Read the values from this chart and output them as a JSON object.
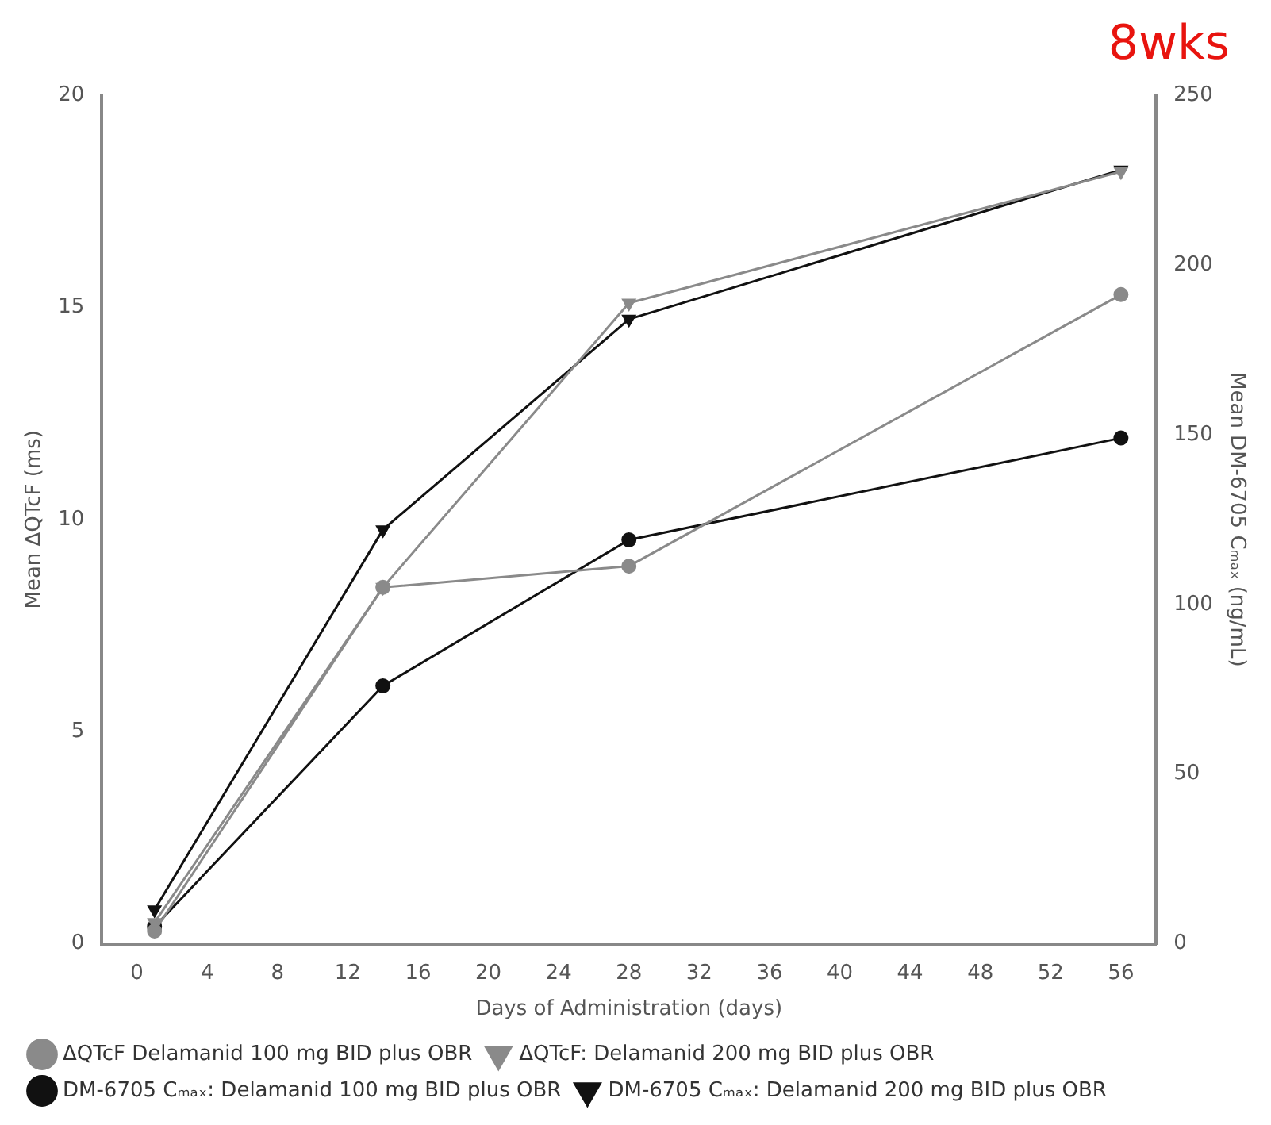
{
  "chart_data": {
    "type": "line",
    "xlabel": "Days of Administration (days)",
    "ylabel": "Mean ΔQTcF (ms)",
    "y2label": "Mean DM-6705 Cₘₐₓ (ng/mL)",
    "annotations": [
      "8wks"
    ],
    "x": [
      1,
      14,
      28,
      56
    ],
    "xlim": [
      -2,
      58
    ],
    "xticks": [
      0,
      4,
      8,
      12,
      16,
      20,
      24,
      28,
      32,
      36,
      40,
      44,
      48,
      52,
      56
    ],
    "ylim": [
      0,
      20
    ],
    "yticks": [
      0,
      5,
      10,
      15,
      20
    ],
    "y2lim": [
      0,
      250
    ],
    "y2ticks": [
      0,
      50,
      100,
      150,
      200,
      250
    ],
    "legend": "bottom",
    "grid": false,
    "line_style": "solid",
    "series": [
      {
        "name": "ΔQTcF Delamanid 100 mg BID plus OBR",
        "color": "#8a8a8a",
        "marker": "circle",
        "values": [
          0.3,
          8.4,
          8.9,
          15.3
        ]
      },
      {
        "name": "ΔQTcF: Delamanid 200 mg BID plus OBR",
        "color": "#8a8a8a",
        "marker": "triangle",
        "values": [
          0.5,
          8.4,
          15.1,
          18.2
        ]
      },
      {
        "name": "DM-6705 Cₘₐₓ: Delamanid 100 mg BID plus OBR",
        "color": "#111111",
        "marker": "circle",
        "axis": "y2",
        "values": [
          5,
          76,
          119,
          149
        ]
      },
      {
        "name": "DM-6705 Cₘₐₓ: Delamanid 200 mg BID plus OBR",
        "color": "#111111",
        "marker": "triangle",
        "axis": "y2",
        "values": [
          10,
          122,
          184,
          228
        ]
      }
    ]
  }
}
